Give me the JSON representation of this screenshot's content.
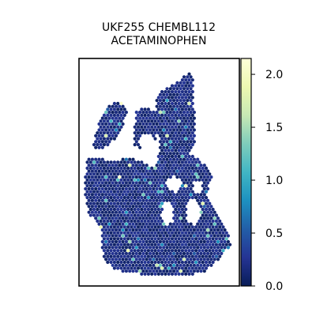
{
  "chart_data": {
    "type": "heatmap",
    "title_lines": [
      "UKF255 CHEMBL112",
      "ACETAMINOPHEN"
    ],
    "xlabel": "",
    "ylabel": "",
    "colorbar": {
      "range": [
        0.0,
        2.15
      ],
      "ticks": [
        0.0,
        0.5,
        1.0,
        1.5,
        2.0
      ],
      "tick_labels": [
        "0.0",
        "0.5",
        "1.0",
        "1.5",
        "2.0"
      ],
      "colormap": "YlGnBu",
      "colors": [
        "#081d58",
        "#253494",
        "#225ea8",
        "#1d91c0",
        "#41b6c4",
        "#7fcdbb",
        "#c7e9b4",
        "#edf8b1",
        "#ffffd9"
      ]
    },
    "spots": {
      "background_value": 0.05,
      "value_distribution": "mostly 0.0–0.3, scattered spots 0.5–1.5, a few near 2.0",
      "shape": "spatial tissue section: three upper lobes (left, center, right tail) joined to a broad lower body with small internal gaps"
    },
    "grid": false
  }
}
